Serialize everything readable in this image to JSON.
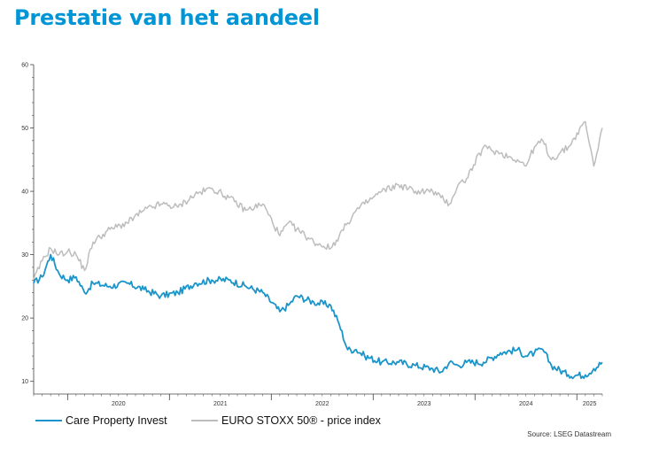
{
  "page": {
    "title": "Prestatie van het aandeel",
    "source": "Source: LSEG Datastream"
  },
  "colors": {
    "title": "#0096d6",
    "series_cpi": "#1b95c9",
    "series_stoxx": "#bdbdbd",
    "axis": "#444444"
  },
  "chart_data": {
    "type": "line",
    "title": "",
    "xlabel": "",
    "ylabel": "",
    "x_range": [
      "2019-09",
      "2025-04"
    ],
    "ylim": [
      8,
      60
    ],
    "y_ticks": [
      10,
      20,
      30,
      40,
      50,
      60
    ],
    "x_year_labels": [
      "2020",
      "2021",
      "2022",
      "2023",
      "2024",
      "2025"
    ],
    "grid": false,
    "legend": "bottom-left",
    "series": [
      {
        "name": "Care Property Invest",
        "color": "#1b95c9",
        "x": [
          "2019-09",
          "2019-10",
          "2019-11",
          "2019-12",
          "2020-01",
          "2020-02",
          "2020-03",
          "2020-04",
          "2020-06",
          "2020-08",
          "2020-10",
          "2020-12",
          "2021-02",
          "2021-04",
          "2021-06",
          "2021-08",
          "2021-10",
          "2021-12",
          "2022-02",
          "2022-03",
          "2022-04",
          "2022-06",
          "2022-08",
          "2022-09",
          "2022-10",
          "2022-11",
          "2022-12",
          "2023-02",
          "2023-04",
          "2023-06",
          "2023-08",
          "2023-09",
          "2023-10",
          "2023-11",
          "2023-12",
          "2024-02",
          "2024-04",
          "2024-06",
          "2024-07",
          "2024-08",
          "2024-09",
          "2024-10",
          "2024-12",
          "2025-02",
          "2025-03",
          "2025-04"
        ],
        "values": [
          25.5,
          26.5,
          30,
          27,
          26,
          26.5,
          24,
          25.5,
          25,
          25.5,
          24.5,
          23.5,
          24,
          25.5,
          26,
          26,
          25,
          24,
          21,
          22,
          23.5,
          22.5,
          22,
          19,
          15,
          15,
          14,
          13,
          13,
          12.5,
          12,
          11.5,
          13,
          12.5,
          13,
          13,
          14.5,
          15,
          14,
          14.5,
          15,
          12.5,
          11,
          11,
          12,
          13
        ]
      },
      {
        "name": "EURO STOXX 50® - price index",
        "color": "#bdbdbd",
        "x": [
          "2019-09",
          "2019-10",
          "2019-11",
          "2019-12",
          "2020-01",
          "2020-02",
          "2020-03",
          "2020-04",
          "2020-06",
          "2020-08",
          "2020-10",
          "2020-12",
          "2021-02",
          "2021-04",
          "2021-06",
          "2021-08",
          "2021-10",
          "2021-12",
          "2022-02",
          "2022-03",
          "2022-04",
          "2022-06",
          "2022-08",
          "2022-09",
          "2022-10",
          "2022-11",
          "2022-12",
          "2023-02",
          "2023-04",
          "2023-06",
          "2023-08",
          "2023-09",
          "2023-10",
          "2023-11",
          "2023-12",
          "2024-02",
          "2024-04",
          "2024-06",
          "2024-07",
          "2024-08",
          "2024-09",
          "2024-10",
          "2024-12",
          "2025-02",
          "2025-03",
          "2025-04"
        ],
        "values": [
          26,
          29,
          31,
          30,
          30.5,
          30,
          27.5,
          32,
          34,
          35,
          37,
          38,
          37.5,
          39.5,
          40.5,
          39,
          37,
          38,
          33,
          35,
          34,
          32,
          31,
          33,
          35,
          37,
          38,
          40,
          41,
          40,
          40,
          39,
          38,
          41,
          42,
          47,
          46,
          45,
          44,
          47,
          48,
          45,
          47,
          51,
          44,
          50
        ]
      }
    ]
  }
}
